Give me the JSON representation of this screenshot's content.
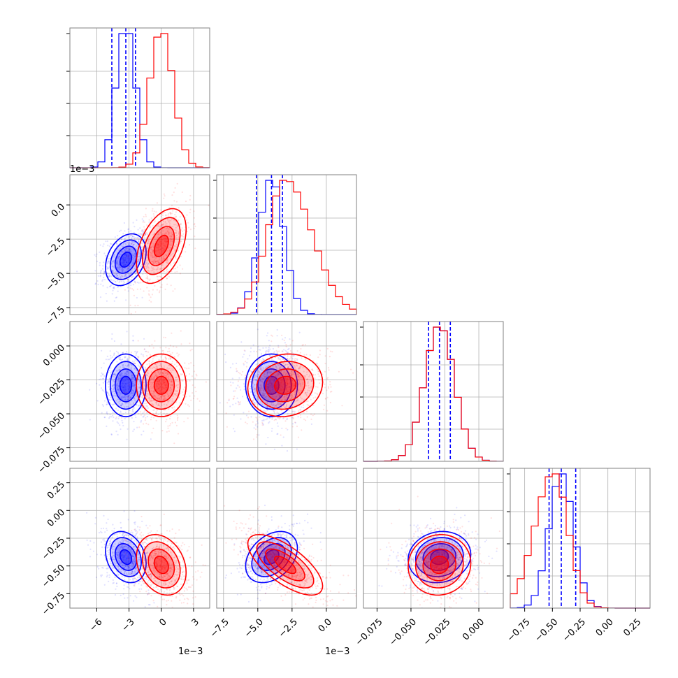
{
  "chart_data": {
    "type": "corner",
    "colors": {
      "blue": "#0000ff",
      "red": "#ff0000",
      "grid": "#b0b0b0",
      "frame": "#808080"
    },
    "grid": true,
    "parameters": [
      {
        "range": [
          -8.5,
          4.5
        ],
        "ticks": [
          -6,
          -3,
          0,
          3
        ],
        "tick_labels": [
          "−6",
          "−3",
          "0",
          "3"
        ],
        "scale_label": "1e−3",
        "hist_ylim": [
          0,
          1.0
        ]
      },
      {
        "range": [
          -8.0,
          2.2
        ],
        "ticks": [
          -7.5,
          -5.0,
          -2.5,
          0.0
        ],
        "tick_labels": [
          "−7.5",
          "−5.0",
          "−2.5",
          "0.0"
        ],
        "scale_label": "1e−3",
        "hist_ylim": [
          0,
          1.0
        ]
      },
      {
        "range": [
          -0.085,
          0.018
        ],
        "ticks": [
          -0.075,
          -0.05,
          -0.025,
          0.0
        ],
        "tick_labels": [
          "−0.075",
          "−0.050",
          "−0.025",
          "0.000"
        ],
        "scale_label": "",
        "hist_ylim": [
          0,
          1.0
        ]
      },
      {
        "range": [
          -0.88,
          0.38
        ],
        "ticks": [
          -0.75,
          -0.5,
          -0.25,
          0.0,
          0.25
        ],
        "tick_labels": [
          "−0.75",
          "−0.50",
          "−0.25",
          "0.00",
          "0.25"
        ],
        "scale_label": "",
        "hist_ylim": [
          0,
          1.0
        ]
      }
    ],
    "y_axes": [
      {
        "param": 1,
        "ticks": [
          0.0,
          -2.5,
          -5.0,
          -7.5
        ],
        "tick_labels": [
          "0.0",
          "−2.5",
          "−5.0",
          "−7.5"
        ],
        "scale_label": "1e−3"
      },
      {
        "param": 2,
        "ticks": [
          0.0,
          -0.025,
          -0.05,
          -0.075
        ],
        "tick_labels": [
          "0.000",
          "−0.025",
          "−0.050",
          "−0.075"
        ],
        "scale_label": ""
      },
      {
        "param": 3,
        "ticks": [
          0.25,
          0.0,
          -0.25,
          -0.5,
          -0.75
        ],
        "tick_labels": [
          "0.25",
          "0.00",
          "−0.25",
          "−0.50",
          "−0.75"
        ],
        "scale_label": ""
      }
    ],
    "series": [
      {
        "color": "blue",
        "mean": [
          -3.3,
          -4.0,
          -0.029,
          -0.42
        ],
        "sd": [
          0.9,
          0.9,
          0.011,
          0.11
        ],
        "quantiles": [
          [
            -4.6,
            -3.3,
            -2.4
          ],
          [
            -5.1,
            -4.0,
            -3.2
          ],
          [
            -0.037,
            -0.029,
            -0.021
          ],
          [
            -0.53,
            -0.42,
            -0.29
          ]
        ]
      },
      {
        "color": "red",
        "mean": [
          0.0,
          -3.0,
          -0.029,
          -0.49
        ],
        "sd": [
          1.1,
          1.3,
          0.011,
          0.13
        ],
        "quantiles": []
      }
    ],
    "correlations": [
      {
        "pair": [
          0,
          1
        ],
        "blue": 0.3,
        "red": 0.45
      },
      {
        "pair": [
          0,
          2
        ],
        "blue": 0.0,
        "red": 0.0
      },
      {
        "pair": [
          1,
          2
        ],
        "blue": 0.0,
        "red": 0.1
      },
      {
        "pair": [
          0,
          3
        ],
        "blue": -0.25,
        "red": -0.25
      },
      {
        "pair": [
          1,
          3
        ],
        "blue": 0.35,
        "red": -0.7
      },
      {
        "pair": [
          2,
          3
        ],
        "blue": 0.1,
        "red": 0.05
      }
    ]
  }
}
